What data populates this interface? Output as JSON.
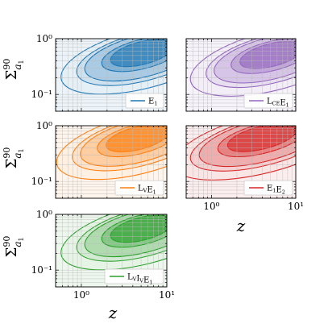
{
  "figure": {
    "ylabel": "Σ",
    "ylabel_sup": "90",
    "ylabel_sub": "a",
    "ylabel_subsub": "1",
    "xlabel": "z"
  },
  "chart_data": [
    {
      "type": "area",
      "legend_main": "E",
      "legend_sub": "1",
      "color": "#1f77b4",
      "xscale": "log",
      "yscale": "log",
      "xlim": [
        0.5,
        10
      ],
      "ylim": [
        0.05,
        1
      ],
      "x_ticks": [],
      "y_ticks": [
        "10⁰",
        "10⁻¹"
      ],
      "legend_position": "lower right",
      "grid": true,
      "contour_levels": [
        0.5,
        0.68,
        0.9,
        0.95,
        0.99
      ],
      "density_peak": {
        "z": 4.5,
        "Sigma90_a1": 0.65
      }
    },
    {
      "type": "area",
      "legend_main": "L",
      "legend_sub": "CE",
      "legend_main2": "E",
      "legend_sub2": "1",
      "color": "#9467bd",
      "xscale": "log",
      "yscale": "log",
      "xlim": [
        0.5,
        10
      ],
      "ylim": [
        0.05,
        1
      ],
      "x_ticks": [],
      "y_ticks": [],
      "legend_position": "lower right",
      "grid": true,
      "contour_levels": [
        0.5,
        0.68,
        0.9,
        0.95,
        0.99
      ],
      "density_peak": {
        "z": 4.5,
        "Sigma90_a1": 0.6
      }
    },
    {
      "type": "area",
      "legend_main": "L",
      "legend_sub": "V",
      "legend_main2": "E",
      "legend_sub2": "1",
      "color": "#ff7f0e",
      "xscale": "log",
      "yscale": "log",
      "xlim": [
        0.5,
        10
      ],
      "ylim": [
        0.05,
        1
      ],
      "x_ticks": [],
      "y_ticks": [
        "10⁰",
        "10⁻¹"
      ],
      "legend_position": "lower right",
      "grid": true,
      "contour_levels": [
        0.5,
        0.68,
        0.9,
        0.95,
        0.99
      ],
      "density_peak": {
        "z": 4.0,
        "Sigma90_a1": 0.7
      }
    },
    {
      "type": "area",
      "legend_main": "E",
      "legend_sub": "1",
      "legend_main2": "E",
      "legend_sub2": "2",
      "color": "#d62728",
      "xscale": "log",
      "yscale": "log",
      "xlim": [
        0.5,
        10
      ],
      "ylim": [
        0.05,
        1
      ],
      "x_ticks": [
        "10⁰",
        "10¹"
      ],
      "y_ticks": [],
      "legend_position": "lower right",
      "grid": true,
      "contour_levels": [
        0.5,
        0.68,
        0.9,
        0.95,
        0.99
      ],
      "density_peak": {
        "z": 3.5,
        "Sigma90_a1": 0.72
      }
    },
    {
      "type": "area",
      "legend_main": "L",
      "legend_sub": "V",
      "legend_main2": "I",
      "legend_sub2": "V",
      "legend_main3": "E",
      "legend_sub3": "1",
      "color": "#2ca02c",
      "xscale": "log",
      "yscale": "log",
      "xlim": [
        0.5,
        10
      ],
      "ylim": [
        0.05,
        1
      ],
      "x_ticks": [
        "10⁰",
        "10¹"
      ],
      "y_ticks": [
        "10⁰",
        "10⁻¹"
      ],
      "legend_position": "lower right",
      "grid": true,
      "contour_levels": [
        0.5,
        0.68,
        0.9,
        0.95,
        0.99
      ],
      "density_peak": {
        "z": 4.5,
        "Sigma90_a1": 0.65
      }
    }
  ]
}
